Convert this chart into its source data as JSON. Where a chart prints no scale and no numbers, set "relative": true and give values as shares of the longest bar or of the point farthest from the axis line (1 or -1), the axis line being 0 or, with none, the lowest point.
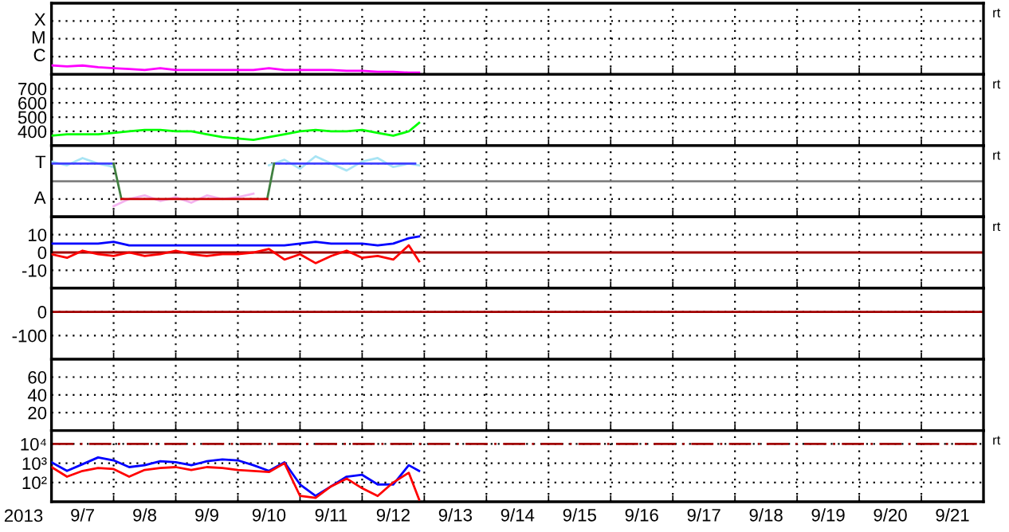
{
  "chart_data": [
    {
      "type": "line",
      "relative": true,
      "xlim": [
        "2013-09-07T00:00",
        "2013-09-22T00:00"
      ],
      "tick_labels": false,
      "grid": true,
      "annotations": [
        "X",
        "M",
        "C",
        "rt"
      ],
      "xticks": [
        {
          "value": "2013-09-08T00:00",
          "label": null
        },
        {
          "value": "2013-09-09T00:00",
          "label": null
        },
        {
          "value": "2013-09-10T00:00",
          "label": null
        },
        {
          "value": "2013-09-11T00:00",
          "label": null
        },
        {
          "value": "2013-09-12T00:00",
          "label": null
        },
        {
          "value": "2013-09-13T00:00",
          "label": null
        },
        {
          "value": "2013-09-14T00:00",
          "label": null
        },
        {
          "value": "2013-09-15T00:00",
          "label": null
        },
        {
          "value": "2013-09-16T00:00",
          "label": null
        },
        {
          "value": "2013-09-17T00:00",
          "label": null
        },
        {
          "value": "2013-09-18T00:00",
          "label": null
        },
        {
          "value": "2013-09-19T00:00",
          "label": null
        },
        {
          "value": "2013-09-20T00:00",
          "label": null
        },
        {
          "value": "2013-09-21T00:00",
          "label": null
        }
      ],
      "x": [
        "2013-09-07T00:00",
        "2013-09-07T06:00",
        "2013-09-07T12:00",
        "2013-09-07T18:00",
        "2013-09-08T00:00",
        "2013-09-08T06:00",
        "2013-09-08T12:00",
        "2013-09-08T18:00",
        "2013-09-09T00:00",
        "2013-09-09T06:00",
        "2013-09-09T12:00",
        "2013-09-09T18:00",
        "2013-09-10T00:00",
        "2013-09-10T06:00",
        "2013-09-10T12:00",
        "2013-09-10T18:00",
        "2013-09-11T00:00",
        "2013-09-11T06:00",
        "2013-09-11T12:00",
        "2013-09-11T18:00",
        "2013-09-12T00:00",
        "2013-09-12T06:00",
        "2013-09-12T12:00",
        "2013-09-12T18:00",
        "2013-09-12T22:00"
      ],
      "series": [
        {
          "color": "#ff00ff",
          "values": [
            1,
            0.9,
            1,
            0.8,
            0.7,
            0.6,
            0.5,
            0.7,
            0.5,
            0.5,
            0.5,
            0.5,
            0.5,
            0.5,
            0.7,
            0.5,
            0.5,
            0.5,
            0.5,
            0.4,
            0.4,
            0.3,
            0.3,
            0.2,
            0.2
          ]
        }
      ]
    },
    {
      "type": "line",
      "ylim": [
        300,
        800
      ],
      "yticks": [
        400,
        500,
        600,
        700
      ],
      "xlim": [
        "2013-09-07T00:00",
        "2013-09-22T00:00"
      ],
      "tick_labels": "y",
      "grid": true,
      "annotations": [
        "rt"
      ],
      "xticks": [
        {
          "value": "2013-09-08T00:00",
          "label": null
        },
        {
          "value": "2013-09-09T00:00",
          "label": null
        },
        {
          "value": "2013-09-10T00:00",
          "label": null
        },
        {
          "value": "2013-09-11T00:00",
          "label": null
        },
        {
          "value": "2013-09-12T00:00",
          "label": null
        },
        {
          "value": "2013-09-13T00:00",
          "label": null
        },
        {
          "value": "2013-09-14T00:00",
          "label": null
        },
        {
          "value": "2013-09-15T00:00",
          "label": null
        },
        {
          "value": "2013-09-16T00:00",
          "label": null
        },
        {
          "value": "2013-09-17T00:00",
          "label": null
        },
        {
          "value": "2013-09-18T00:00",
          "label": null
        },
        {
          "value": "2013-09-19T00:00",
          "label": null
        },
        {
          "value": "2013-09-20T00:00",
          "label": null
        },
        {
          "value": "2013-09-21T00:00",
          "label": null
        }
      ],
      "x": [
        "2013-09-07T00:00",
        "2013-09-07T06:00",
        "2013-09-07T12:00",
        "2013-09-07T18:00",
        "2013-09-08T00:00",
        "2013-09-08T06:00",
        "2013-09-08T12:00",
        "2013-09-08T18:00",
        "2013-09-09T00:00",
        "2013-09-09T06:00",
        "2013-09-09T12:00",
        "2013-09-09T18:00",
        "2013-09-10T00:00",
        "2013-09-10T06:00",
        "2013-09-10T12:00",
        "2013-09-10T18:00",
        "2013-09-11T00:00",
        "2013-09-11T06:00",
        "2013-09-11T12:00",
        "2013-09-11T18:00",
        "2013-09-12T00:00",
        "2013-09-12T06:00",
        "2013-09-12T12:00",
        "2013-09-12T18:00",
        "2013-09-12T22:00"
      ],
      "series": [
        {
          "color": "#00ff00",
          "values": [
            370,
            380,
            380,
            380,
            390,
            400,
            410,
            410,
            400,
            400,
            380,
            360,
            350,
            340,
            360,
            380,
            400,
            410,
            400,
            400,
            410,
            390,
            370,
            400,
            460
          ]
        }
      ]
    },
    {
      "type": "line",
      "relative": true,
      "xlim": [
        "2013-09-07T00:00",
        "2013-09-22T00:00"
      ],
      "tick_labels": false,
      "grid": true,
      "annotations": [
        "T",
        "A",
        "rt"
      ],
      "ref_lines": [
        {
          "axis": "y",
          "value": 0,
          "color": "#808080"
        }
      ],
      "xticks": [
        {
          "value": "2013-09-08T00:00",
          "label": null
        },
        {
          "value": "2013-09-09T00:00",
          "label": null
        },
        {
          "value": "2013-09-10T00:00",
          "label": null
        },
        {
          "value": "2013-09-11T00:00",
          "label": null
        },
        {
          "value": "2013-09-12T00:00",
          "label": null
        },
        {
          "value": "2013-09-13T00:00",
          "label": null
        },
        {
          "value": "2013-09-14T00:00",
          "label": null
        },
        {
          "value": "2013-09-15T00:00",
          "label": null
        },
        {
          "value": "2013-09-16T00:00",
          "label": null
        },
        {
          "value": "2013-09-17T00:00",
          "label": null
        },
        {
          "value": "2013-09-18T00:00",
          "label": null
        },
        {
          "value": "2013-09-19T00:00",
          "label": null
        },
        {
          "value": "2013-09-20T00:00",
          "label": null
        },
        {
          "value": "2013-09-21T00:00",
          "label": null
        }
      ],
      "x": [
        "2013-09-07T00:00",
        "2013-09-07T06:00",
        "2013-09-07T12:00",
        "2013-09-07T18:00",
        "2013-09-08T00:00",
        "2013-09-08T06:00",
        "2013-09-08T12:00",
        "2013-09-08T18:00",
        "2013-09-09T00:00",
        "2013-09-09T06:00",
        "2013-09-09T12:00",
        "2013-09-09T18:00",
        "2013-09-10T00:00",
        "2013-09-10T06:00",
        "2013-09-10T12:00",
        "2013-09-10T18:00",
        "2013-09-11T00:00",
        "2013-09-11T06:00",
        "2013-09-11T12:00",
        "2013-09-11T18:00",
        "2013-09-12T00:00",
        "2013-09-12T06:00",
        "2013-09-12T12:00",
        "2013-09-12T18:00",
        "2013-09-12T22:00"
      ],
      "series": [
        {
          "color": "#a8e4f4",
          "values": [
            0.79,
            0.64,
            0.93,
            0.71,
            0.57,
            null,
            null,
            null,
            null,
            null,
            null,
            null,
            null,
            null,
            0.64,
            0.86,
            0.5,
            1,
            0.71,
            0.43,
            0.79,
            0.93,
            0.57,
            0.71,
            0.64
          ]
        },
        {
          "color": "#f4b4f0",
          "values": [
            null,
            null,
            null,
            null,
            -1,
            -0.71,
            -0.57,
            -0.79,
            -0.64,
            -0.86,
            -0.57,
            -0.71,
            -0.64,
            -0.5,
            null,
            null,
            null,
            null,
            null,
            null,
            null,
            null,
            null,
            null,
            null
          ]
        },
        {
          "color": "#4040ff",
          "x": [
            "2013-09-07T00:00",
            "2013-09-08T00:00",
            "2013-09-09T00:00",
            "2013-09-10T14:00",
            "2013-09-12T20:30"
          ],
          "values": [
            0.71,
            0.71,
            null,
            0.71,
            0.71
          ]
        },
        {
          "color": "#408040",
          "x": [
            "2013-09-08T00:00",
            "2013-09-08T03:00",
            "2013-09-09T00:00",
            "2013-09-10T11:20",
            "2013-09-10T14:00"
          ],
          "values": [
            0.71,
            -0.71,
            null,
            -0.71,
            0.71
          ]
        },
        {
          "color": "#cc0000",
          "x": [
            "2013-09-08T03:00",
            "2013-09-10T11:20"
          ],
          "values": [
            -0.71,
            -0.71
          ]
        }
      ]
    },
    {
      "type": "line",
      "ylim": [
        -20,
        20
      ],
      "yticks": [
        -10,
        0,
        10
      ],
      "xlim": [
        "2013-09-07T00:00",
        "2013-09-22T00:00"
      ],
      "tick_labels": "y",
      "grid": true,
      "annotations": [
        "rt"
      ],
      "ref_lines": [
        {
          "axis": "y",
          "value": 0,
          "color": "#a00000"
        }
      ],
      "xticks": [
        {
          "value": "2013-09-08T00:00",
          "label": null
        },
        {
          "value": "2013-09-09T00:00",
          "label": null
        },
        {
          "value": "2013-09-10T00:00",
          "label": null
        },
        {
          "value": "2013-09-11T00:00",
          "label": null
        },
        {
          "value": "2013-09-12T00:00",
          "label": null
        },
        {
          "value": "2013-09-13T00:00",
          "label": null
        },
        {
          "value": "2013-09-14T00:00",
          "label": null
        },
        {
          "value": "2013-09-15T00:00",
          "label": null
        },
        {
          "value": "2013-09-16T00:00",
          "label": null
        },
        {
          "value": "2013-09-17T00:00",
          "label": null
        },
        {
          "value": "2013-09-18T00:00",
          "label": null
        },
        {
          "value": "2013-09-19T00:00",
          "label": null
        },
        {
          "value": "2013-09-20T00:00",
          "label": null
        },
        {
          "value": "2013-09-21T00:00",
          "label": null
        }
      ],
      "x": [
        "2013-09-07T00:00",
        "2013-09-07T06:00",
        "2013-09-07T12:00",
        "2013-09-07T18:00",
        "2013-09-08T00:00",
        "2013-09-08T06:00",
        "2013-09-08T12:00",
        "2013-09-08T18:00",
        "2013-09-09T00:00",
        "2013-09-09T06:00",
        "2013-09-09T12:00",
        "2013-09-09T18:00",
        "2013-09-10T00:00",
        "2013-09-10T06:00",
        "2013-09-10T12:00",
        "2013-09-10T18:00",
        "2013-09-11T00:00",
        "2013-09-11T06:00",
        "2013-09-11T12:00",
        "2013-09-11T18:00",
        "2013-09-12T00:00",
        "2013-09-12T06:00",
        "2013-09-12T12:00",
        "2013-09-12T18:00",
        "2013-09-12T22:00"
      ],
      "series": [
        {
          "color": "#0000ff",
          "values": [
            5,
            5,
            5,
            5,
            6,
            4,
            4,
            4,
            4,
            4,
            4,
            4,
            4,
            4,
            4,
            4,
            5,
            6,
            5,
            5,
            5,
            4,
            5,
            8,
            9
          ]
        },
        {
          "color": "#ff0000",
          "values": [
            -1,
            -3,
            1,
            -1,
            -2,
            0,
            -2,
            -1,
            1,
            -1,
            -2,
            -1,
            -1,
            0,
            2,
            -4,
            -1,
            -6,
            -2,
            1,
            -3,
            -2,
            -4,
            4,
            -5
          ]
        }
      ]
    },
    {
      "type": "line",
      "ylim": [
        -200,
        100
      ],
      "yticks": [
        -100,
        0
      ],
      "xlim": [
        "2013-09-07T00:00",
        "2013-09-22T00:00"
      ],
      "tick_labels": "y",
      "grid": true,
      "ref_lines": [
        {
          "axis": "y",
          "value": 0,
          "color": "#a00000"
        }
      ],
      "xticks": [
        {
          "value": "2013-09-08T00:00",
          "label": null
        },
        {
          "value": "2013-09-09T00:00",
          "label": null
        },
        {
          "value": "2013-09-10T00:00",
          "label": null
        },
        {
          "value": "2013-09-11T00:00",
          "label": null
        },
        {
          "value": "2013-09-12T00:00",
          "label": null
        },
        {
          "value": "2013-09-13T00:00",
          "label": null
        },
        {
          "value": "2013-09-14T00:00",
          "label": null
        },
        {
          "value": "2013-09-15T00:00",
          "label": null
        },
        {
          "value": "2013-09-16T00:00",
          "label": null
        },
        {
          "value": "2013-09-17T00:00",
          "label": null
        },
        {
          "value": "2013-09-18T00:00",
          "label": null
        },
        {
          "value": "2013-09-19T00:00",
          "label": null
        },
        {
          "value": "2013-09-20T00:00",
          "label": null
        },
        {
          "value": "2013-09-21T00:00",
          "label": null
        }
      ]
    },
    {
      "type": "line",
      "ylim": [
        0,
        80
      ],
      "yticks": [
        20,
        40,
        60
      ],
      "xlim": [
        "2013-09-07T00:00",
        "2013-09-22T00:00"
      ],
      "tick_labels": "y",
      "grid": true,
      "xticks": [
        {
          "value": "2013-09-08T00:00",
          "label": null
        },
        {
          "value": "2013-09-09T00:00",
          "label": null
        },
        {
          "value": "2013-09-10T00:00",
          "label": null
        },
        {
          "value": "2013-09-11T00:00",
          "label": null
        },
        {
          "value": "2013-09-12T00:00",
          "label": null
        },
        {
          "value": "2013-09-13T00:00",
          "label": null
        },
        {
          "value": "2013-09-14T00:00",
          "label": null
        },
        {
          "value": "2013-09-15T00:00",
          "label": null
        },
        {
          "value": "2013-09-16T00:00",
          "label": null
        },
        {
          "value": "2013-09-17T00:00",
          "label": null
        },
        {
          "value": "2013-09-18T00:00",
          "label": null
        },
        {
          "value": "2013-09-19T00:00",
          "label": null
        },
        {
          "value": "2013-09-20T00:00",
          "label": null
        },
        {
          "value": "2013-09-21T00:00",
          "label": null
        }
      ]
    },
    {
      "type": "line",
      "log": "y",
      "ylim": [
        10,
        50000
      ],
      "yticks": [
        {
          "value": 100,
          "label": "10²"
        },
        {
          "value": 1000,
          "label": "10³"
        },
        {
          "value": 10000,
          "label": "10⁴"
        }
      ],
      "xlim": [
        "2013-09-07T00:00",
        "2013-09-22T00:00"
      ],
      "grid": true,
      "xlabel": "2013",
      "annotations": [
        "rt"
      ],
      "ref_lines": [
        {
          "axis": "y",
          "value": 10000,
          "color": "#a00000",
          "line_style": "dashed"
        }
      ],
      "xticks": [
        {
          "value": "2013-09-07T12:00",
          "label": "9/7"
        },
        {
          "value": "2013-09-08T12:00",
          "label": "9/8"
        },
        {
          "value": "2013-09-09T12:00",
          "label": "9/9"
        },
        {
          "value": "2013-09-10T12:00",
          "label": "9/10"
        },
        {
          "value": "2013-09-11T12:00",
          "label": "9/11"
        },
        {
          "value": "2013-09-12T12:00",
          "label": "9/12"
        },
        {
          "value": "2013-09-13T12:00",
          "label": "9/13"
        },
        {
          "value": "2013-09-14T12:00",
          "label": "9/14"
        },
        {
          "value": "2013-09-15T12:00",
          "label": "9/15"
        },
        {
          "value": "2013-09-16T12:00",
          "label": "9/16"
        },
        {
          "value": "2013-09-17T12:00",
          "label": "9/17"
        },
        {
          "value": "2013-09-18T12:00",
          "label": "9/18"
        },
        {
          "value": "2013-09-19T12:00",
          "label": "9/19"
        },
        {
          "value": "2013-09-20T12:00",
          "label": "9/20"
        },
        {
          "value": "2013-09-21T12:00",
          "label": "9/21"
        },
        {
          "value": "2013-09-08T00:00",
          "label": null
        },
        {
          "value": "2013-09-09T00:00",
          "label": null
        },
        {
          "value": "2013-09-10T00:00",
          "label": null
        },
        {
          "value": "2013-09-11T00:00",
          "label": null
        },
        {
          "value": "2013-09-12T00:00",
          "label": null
        },
        {
          "value": "2013-09-13T00:00",
          "label": null
        },
        {
          "value": "2013-09-14T00:00",
          "label": null
        },
        {
          "value": "2013-09-15T00:00",
          "label": null
        },
        {
          "value": "2013-09-16T00:00",
          "label": null
        },
        {
          "value": "2013-09-17T00:00",
          "label": null
        },
        {
          "value": "2013-09-18T00:00",
          "label": null
        },
        {
          "value": "2013-09-19T00:00",
          "label": null
        },
        {
          "value": "2013-09-20T00:00",
          "label": null
        },
        {
          "value": "2013-09-21T00:00",
          "label": null
        }
      ],
      "x": [
        "2013-09-07T00:00",
        "2013-09-07T06:00",
        "2013-09-07T12:00",
        "2013-09-07T18:00",
        "2013-09-08T00:00",
        "2013-09-08T06:00",
        "2013-09-08T12:00",
        "2013-09-08T18:00",
        "2013-09-09T00:00",
        "2013-09-09T06:00",
        "2013-09-09T12:00",
        "2013-09-09T18:00",
        "2013-09-10T00:00",
        "2013-09-10T06:00",
        "2013-09-10T12:00",
        "2013-09-10T18:00",
        "2013-09-11T00:00",
        "2013-09-11T06:00",
        "2013-09-11T12:00",
        "2013-09-11T18:00",
        "2013-09-12T00:00",
        "2013-09-12T06:00",
        "2013-09-12T12:00",
        "2013-09-12T18:00",
        "2013-09-12T22:00"
      ],
      "series": [
        {
          "color": "#0000ff",
          "values": [
            1120,
            400,
            890,
            2000,
            1410,
            630,
            790,
            1260,
            1120,
            790,
            1260,
            1580,
            1410,
            790,
            400,
            1120,
            79,
            20,
            63,
            200,
            250,
            79,
            79,
            790,
            400
          ]
        },
        {
          "color": "#ff0000",
          "values": [
            630,
            200,
            400,
            560,
            500,
            200,
            450,
            560,
            630,
            450,
            630,
            560,
            450,
            400,
            350,
            1000,
            20,
            16,
            63,
            160,
            50,
            20,
            100,
            320,
            13
          ]
        }
      ]
    }
  ]
}
